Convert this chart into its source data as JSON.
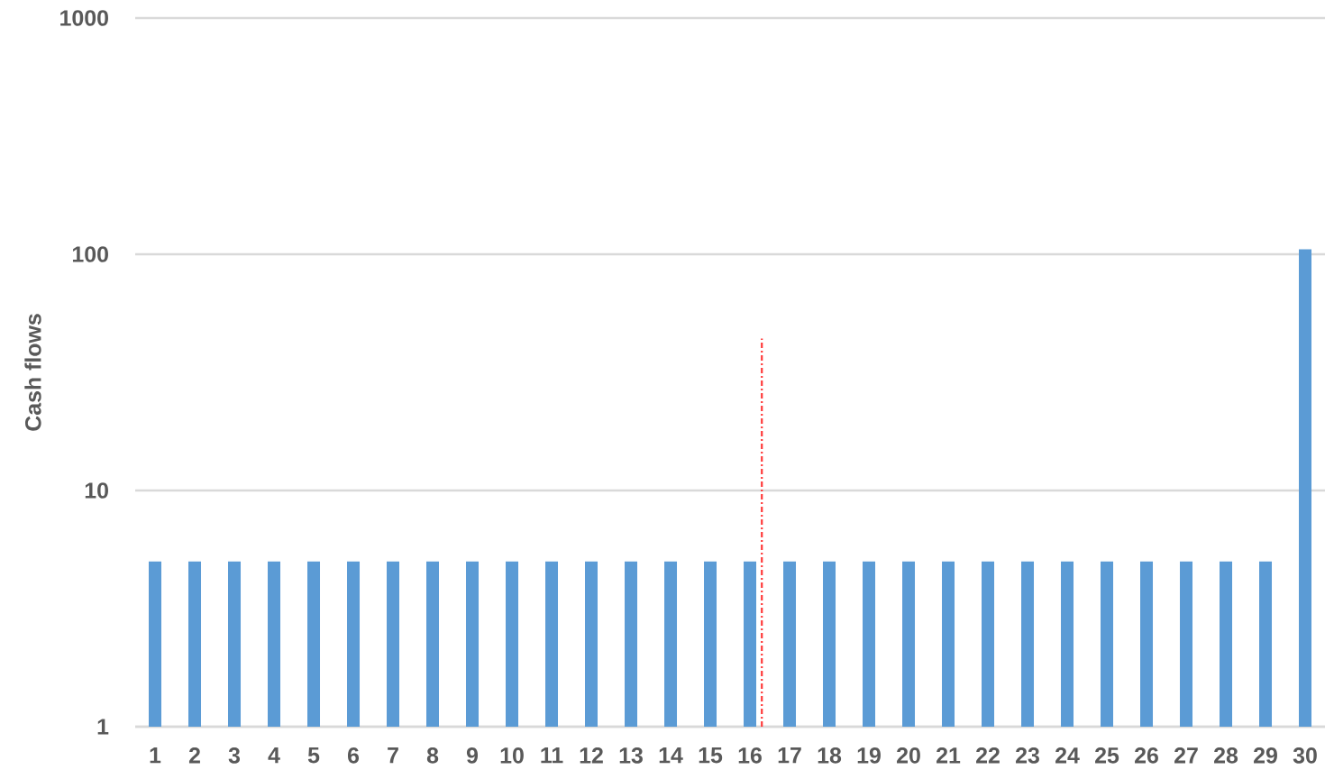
{
  "chart_data": {
    "type": "bar",
    "ylabel": "Cash flows",
    "log": "y",
    "grid": "y",
    "x": [
      1,
      2,
      3,
      4,
      5,
      6,
      7,
      8,
      9,
      10,
      11,
      12,
      13,
      14,
      15,
      16,
      17,
      18,
      19,
      20,
      21,
      22,
      23,
      24,
      25,
      26,
      27,
      28,
      29,
      30
    ],
    "xlim": [
      0.5,
      30.5
    ],
    "xticks": [
      1,
      2,
      3,
      4,
      5,
      6,
      7,
      8,
      9,
      10,
      11,
      12,
      13,
      14,
      15,
      16,
      17,
      18,
      19,
      20,
      21,
      22,
      23,
      24,
      25,
      26,
      27,
      28,
      29,
      30
    ],
    "ylim": [
      1,
      1000
    ],
    "yticks": [
      1,
      10,
      100,
      1000
    ],
    "series": [
      {
        "color": "#5b9bd5",
        "values": [
          5,
          5,
          5,
          5,
          5,
          5,
          5,
          5,
          5,
          5,
          5,
          5,
          5,
          5,
          5,
          5,
          5,
          5,
          5,
          5,
          5,
          5,
          5,
          5,
          5,
          5,
          5,
          5,
          5,
          105
        ]
      },
      {
        "type": "line",
        "x": [
          16.3,
          16.3
        ],
        "values": [
          1,
          44
        ],
        "color": "#ff3b3b",
        "line_style": "dashdot",
        "marker": "none"
      }
    ]
  }
}
